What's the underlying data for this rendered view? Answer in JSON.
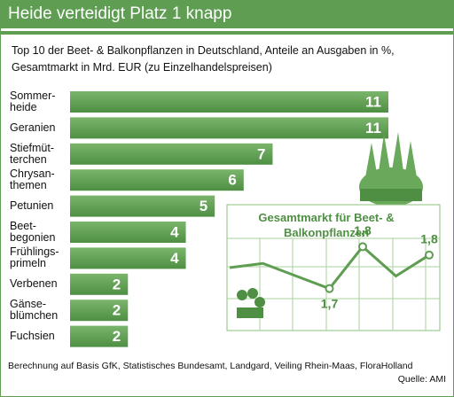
{
  "chart_data": [
    {
      "type": "bar",
      "title": "Heide verteidigt Platz 1 knapp",
      "subtitle": "Top 10 der Beet- & Balkonpflanzen in Deutschland, Anteile an Ausgaben in %, Gesamtmarkt in Mrd. EUR (zu Einzelhandelspreisen)",
      "categories": [
        "Sommer-\nheide",
        "Geranien",
        "Stiefmüt-\nterchen",
        "Chrysan-\nthemen",
        "Petunien",
        "Beet-\nbegonien",
        "Frühlings-\nprimeln",
        "Verbenen",
        "Gänse-\nblümchen",
        "Fuchsien"
      ],
      "values": [
        11,
        11,
        7,
        6,
        5,
        4,
        4,
        2,
        2,
        2
      ],
      "color": "#5e9d52",
      "note": "Berechnung auf Basis GfK, Statistisches Bundesamt, Landgard, Veiling Rhein-Maas, FloraHolland",
      "source": "Quelle: AMI"
    },
    {
      "type": "line",
      "title": "Gesamtmarkt für Beet- &\nBalkonpflanzen",
      "categories": [
        null,
        null,
        null,
        null,
        null,
        null,
        null
      ],
      "values": [
        1.75,
        1.76,
        1.73,
        1.7,
        1.8,
        1.73,
        1.78
      ],
      "value_labels": [
        null,
        null,
        null,
        "1,7",
        "1,8",
        null,
        "1,8"
      ],
      "color": "#5e9d52",
      "ylim": [
        1.6,
        1.9
      ]
    }
  ]
}
